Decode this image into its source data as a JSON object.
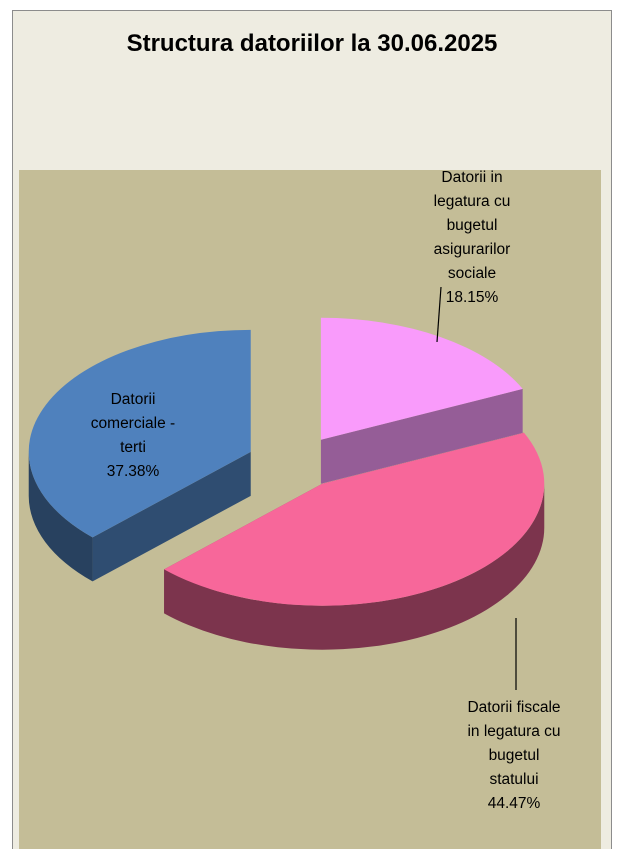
{
  "chart_data": {
    "type": "pie3d",
    "title": "Structura datoriilor la 30.06.2025",
    "categories": [
      "Datorii in legatura cu bugetul asigurarilor sociale",
      "Datorii fiscale in legatura cu bugetul statului",
      "Datorii comerciale - terti"
    ],
    "values": [
      18.15,
      44.47,
      37.38
    ],
    "value_labels": [
      "18.15%",
      "44.47%",
      "37.38%"
    ],
    "colors": [
      "#f99bfb",
      "#f7679a",
      "#4f81bd"
    ]
  }
}
